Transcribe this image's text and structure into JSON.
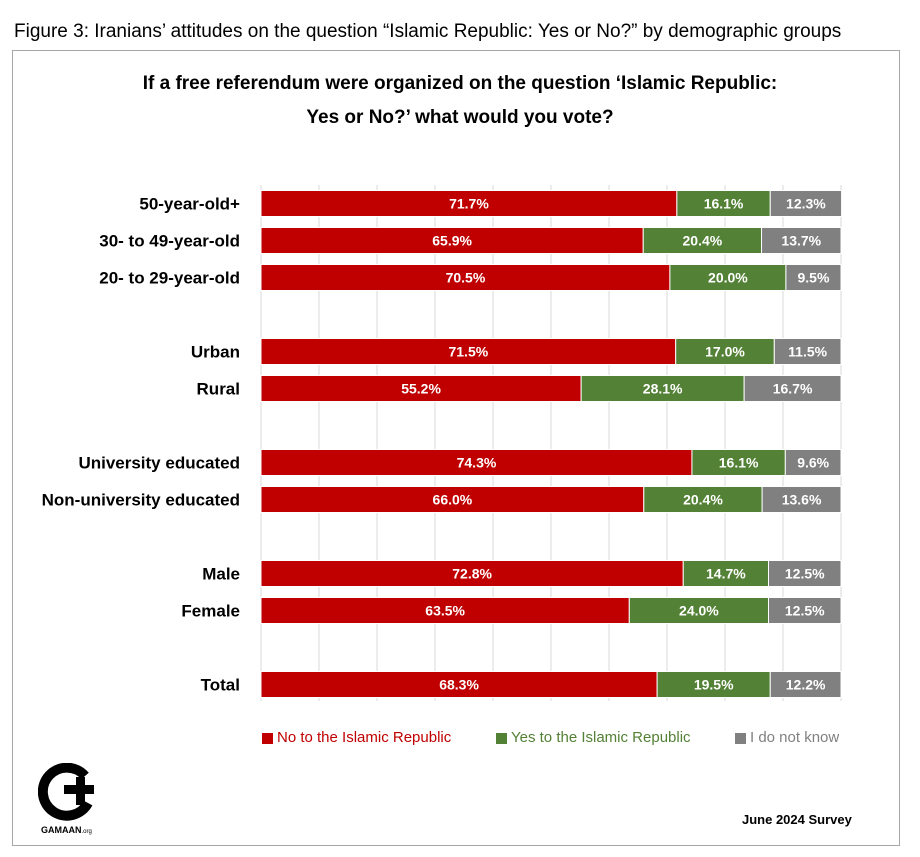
{
  "figure_caption": "Figure 3: Iranians’ attitudes on the question “Islamic Republic: Yes or No?” by demographic groups",
  "chart_data": {
    "type": "bar",
    "orientation": "horizontal",
    "stacked": true,
    "title_line1": "If a free referendum were organized on the question ‘Islamic Republic:",
    "title_line2": "Yes or No?’ what would you vote?",
    "xlim": [
      0,
      100
    ],
    "grid": true,
    "groups": [
      [
        "50-year-old+",
        "30- to 49-year-old",
        "20- to 29-year-old"
      ],
      [
        "Urban",
        "Rural"
      ],
      [
        "University educated",
        "Non-university educated"
      ],
      [
        "Male",
        "Female"
      ],
      [
        "Total"
      ]
    ],
    "categories": [
      "50-year-old+",
      "30- to 49-year-old",
      "20- to 29-year-old",
      "Urban",
      "Rural",
      "University educated",
      "Non-university educated",
      "Male",
      "Female",
      "Total"
    ],
    "series": [
      {
        "name": "No to the Islamic Republic",
        "color": "#c00000",
        "values": [
          71.7,
          65.9,
          70.5,
          71.5,
          55.2,
          74.3,
          66.0,
          72.8,
          63.5,
          68.3
        ],
        "labels": [
          "71.7%",
          "65.9%",
          "70.5%",
          "71.5%",
          "55.2%",
          "74.3%",
          "66.0%",
          "72.8%",
          "63.5%",
          "68.3%"
        ]
      },
      {
        "name": "Yes to the Islamic Republic",
        "color": "#538135",
        "values": [
          16.1,
          20.4,
          20.0,
          17.0,
          28.1,
          16.1,
          20.4,
          14.7,
          24.0,
          19.5
        ],
        "labels": [
          "16.1%",
          "20.4%",
          "20.0%",
          "17.0%",
          "28.1%",
          "16.1%",
          "20.4%",
          "14.7%",
          "24.0%",
          "19.5%"
        ]
      },
      {
        "name": "I do not know",
        "color": "#808080",
        "values": [
          12.3,
          13.7,
          9.5,
          11.5,
          16.7,
          9.6,
          13.6,
          12.5,
          12.5,
          12.2
        ],
        "labels": [
          "12.3%",
          "13.7%",
          "9.5%",
          "11.5%",
          "16.7%",
          "9.6%",
          "13.6%",
          "12.5%",
          "12.5%",
          "12.2%"
        ]
      }
    ],
    "legend_position": "bottom"
  },
  "logo": {
    "name": "GAMAAN",
    "suffix": ".org"
  },
  "survey_note": "June 2024 Survey"
}
